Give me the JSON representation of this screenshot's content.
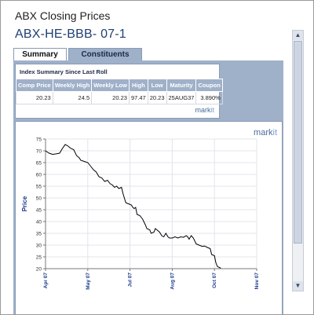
{
  "header": {
    "title": "ABX Closing Prices",
    "subtitle": "ABX-HE-BBB- 07-1"
  },
  "tabs": [
    {
      "label": "Summary",
      "active": true
    },
    {
      "label": "Constituents",
      "active": false
    }
  ],
  "summary": {
    "heading": "Index Summary Since Last Roll",
    "columns": [
      "Comp Price",
      "Weekly High",
      "Weekly Low",
      "High",
      "Low",
      "Maturity",
      "Coupon"
    ],
    "row": [
      "20.23",
      "24.5",
      "20.23",
      "97.47",
      "20.23",
      "25AUG37",
      "3.890%"
    ],
    "brand": {
      "part1": "mark",
      "part2": "it"
    }
  },
  "chart_brand": {
    "part1": "mark",
    "part2": "it"
  },
  "chart_data": {
    "type": "line",
    "title": "",
    "xlabel": "",
    "ylabel": "Price",
    "x_tick_labels": [
      "Apr 07",
      "May 07",
      "Jul 07",
      "Aug 07",
      "Oct 07",
      "Nov 07"
    ],
    "x_tick_days": [
      0,
      60,
      120,
      180,
      240,
      300
    ],
    "ylim": [
      20,
      75
    ],
    "y_ticks": [
      20,
      25,
      30,
      35,
      40,
      45,
      50,
      55,
      60,
      65,
      70,
      75
    ],
    "grid": true,
    "series": [
      {
        "name": "",
        "color": "#000000",
        "points": [
          [
            0,
            70
          ],
          [
            5,
            69
          ],
          [
            10,
            68.5
          ],
          [
            15,
            68.7
          ],
          [
            20,
            69
          ],
          [
            24,
            71
          ],
          [
            28,
            72.7
          ],
          [
            32,
            72
          ],
          [
            36,
            71
          ],
          [
            40,
            70.5
          ],
          [
            44,
            68
          ],
          [
            48,
            67
          ],
          [
            50,
            66
          ],
          [
            55,
            65.5
          ],
          [
            60,
            65
          ],
          [
            64,
            63.5
          ],
          [
            68,
            62
          ],
          [
            72,
            61
          ],
          [
            76,
            59
          ],
          [
            80,
            58.5
          ],
          [
            84,
            57
          ],
          [
            88,
            57.5
          ],
          [
            92,
            56
          ],
          [
            95,
            55.5
          ],
          [
            98,
            54.5
          ],
          [
            101,
            55
          ],
          [
            104,
            54
          ],
          [
            108,
            54.5
          ],
          [
            110,
            52
          ],
          [
            112,
            50
          ],
          [
            114,
            48
          ],
          [
            118,
            47.5
          ],
          [
            122,
            47
          ],
          [
            124,
            46
          ],
          [
            126,
            45.5
          ],
          [
            128,
            46
          ],
          [
            130,
            43
          ],
          [
            134,
            42.5
          ],
          [
            138,
            41
          ],
          [
            142,
            38.5
          ],
          [
            144,
            37
          ],
          [
            148,
            36.5
          ],
          [
            150,
            35
          ],
          [
            154,
            35.5
          ],
          [
            156,
            37
          ],
          [
            158,
            36.5
          ],
          [
            162,
            35.5
          ],
          [
            165,
            34
          ],
          [
            168,
            33.5
          ],
          [
            171,
            35
          ],
          [
            174,
            33.5
          ],
          [
            176,
            33
          ],
          [
            180,
            33
          ],
          [
            184,
            33.5
          ],
          [
            188,
            33
          ],
          [
            192,
            33.5
          ],
          [
            196,
            33.3
          ],
          [
            200,
            34
          ],
          [
            202,
            33.5
          ],
          [
            204,
            32.5
          ],
          [
            207,
            34
          ],
          [
            210,
            33
          ],
          [
            214,
            30.5
          ],
          [
            218,
            30
          ],
          [
            222,
            29.5
          ],
          [
            226,
            29.6
          ],
          [
            230,
            29
          ],
          [
            234,
            28.5
          ],
          [
            236,
            26
          ],
          [
            240,
            25.5
          ],
          [
            242,
            22.5
          ],
          [
            244,
            21
          ],
          [
            247,
            20.5
          ],
          [
            249,
            20.23
          ]
        ]
      }
    ]
  }
}
